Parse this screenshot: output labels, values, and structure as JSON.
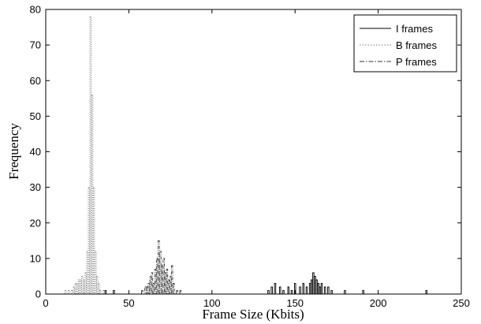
{
  "chart_data": {
    "type": "bar",
    "xlabel": "Frame Size (Kbits)",
    "ylabel": "Frequency",
    "xlim": [
      0,
      250
    ],
    "ylim": [
      0,
      80
    ],
    "xticks": [
      0,
      50,
      100,
      150,
      200,
      250
    ],
    "yticks": [
      0,
      10,
      20,
      30,
      40,
      50,
      60,
      70,
      80
    ],
    "grid": false,
    "legend_position": "top-right",
    "series": [
      {
        "name": "I frames",
        "style": "solid",
        "color": "#000000",
        "x": [
          36,
          41,
          134,
          136,
          138,
          141,
          143,
          146,
          148,
          150,
          153,
          155,
          157,
          159,
          160,
          161,
          162,
          163,
          164,
          165,
          166,
          168,
          170,
          172,
          180,
          191,
          229
        ],
        "values": [
          1,
          1,
          1,
          2,
          3,
          2,
          1,
          2,
          1,
          3,
          2,
          3,
          2,
          3,
          4,
          6,
          5,
          4,
          3,
          2,
          3,
          2,
          2,
          1,
          1,
          1,
          1
        ]
      },
      {
        "name": "B frames",
        "style": "dotted",
        "color": "#777777",
        "x": [
          12,
          14,
          16,
          17,
          18,
          19,
          20,
          21,
          22,
          23,
          24,
          25,
          26,
          27,
          28,
          29,
          30,
          31,
          32,
          33,
          35
        ],
        "values": [
          1,
          1,
          1,
          2,
          3,
          3,
          4,
          4,
          5,
          4,
          6,
          12,
          30,
          78,
          56,
          30,
          12,
          5,
          3,
          1,
          1
        ]
      },
      {
        "name": "P frames",
        "style": "dashdot",
        "color": "#333333",
        "x": [
          58,
          60,
          61,
          62,
          63,
          64,
          65,
          66,
          67,
          68,
          69,
          70,
          71,
          72,
          73,
          74,
          75,
          76,
          77,
          79,
          81
        ],
        "values": [
          1,
          2,
          2,
          3,
          5,
          6,
          3,
          7,
          10,
          15,
          12,
          8,
          10,
          6,
          7,
          4,
          5,
          8,
          3,
          1,
          1
        ]
      }
    ]
  }
}
